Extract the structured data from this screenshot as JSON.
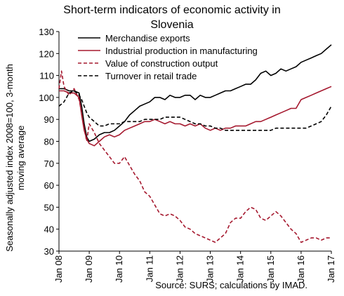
{
  "chart_data": {
    "type": "line",
    "title_lines": [
      "Short-term indicators of economic activity in",
      "Slovenia"
    ],
    "ylabel_lines": [
      "Seasonally adjusted index 2008=100, 3-month",
      "moving average"
    ],
    "source": "Source: SURS; calculations by IMAD.",
    "ylim": [
      30,
      130
    ],
    "yticks": [
      30,
      40,
      50,
      60,
      70,
      80,
      90,
      100,
      110,
      120,
      130
    ],
    "xlim": [
      "2008-01",
      "2017-01"
    ],
    "xticks": [
      {
        "label": "Jan 08",
        "date": "2008-01"
      },
      {
        "label": "Jan 09",
        "date": "2009-01"
      },
      {
        "label": "Jan 10",
        "date": "2010-01"
      },
      {
        "label": "Jan 11",
        "date": "2011-01"
      },
      {
        "label": "Jan 12",
        "date": "2012-01"
      },
      {
        "label": "Jan 13",
        "date": "2013-01"
      },
      {
        "label": "Jan 14",
        "date": "2014-01"
      },
      {
        "label": "Jan 15",
        "date": "2015-01"
      },
      {
        "label": "Jan 16",
        "date": "2016-01"
      },
      {
        "label": "Jan 17",
        "date": "2017-01"
      }
    ],
    "grid": false,
    "legend_position": "top-left",
    "series": [
      {
        "name": "Merchandise exports",
        "color": "#000000",
        "dash": "solid",
        "points": [
          [
            "2008-01",
            104
          ],
          [
            "2008-03",
            104
          ],
          [
            "2008-05",
            103
          ],
          [
            "2008-07",
            103
          ],
          [
            "2008-09",
            102
          ],
          [
            "2008-10",
            96
          ],
          [
            "2008-11",
            88
          ],
          [
            "2008-12",
            82
          ],
          [
            "2009-01",
            80
          ],
          [
            "2009-03",
            81
          ],
          [
            "2009-05",
            83
          ],
          [
            "2009-07",
            84
          ],
          [
            "2009-09",
            84
          ],
          [
            "2009-11",
            85
          ],
          [
            "2010-01",
            87
          ],
          [
            "2010-03",
            89
          ],
          [
            "2010-05",
            92
          ],
          [
            "2010-07",
            94
          ],
          [
            "2010-09",
            96
          ],
          [
            "2010-11",
            97
          ],
          [
            "2011-01",
            98
          ],
          [
            "2011-03",
            100
          ],
          [
            "2011-05",
            100
          ],
          [
            "2011-07",
            99
          ],
          [
            "2011-09",
            101
          ],
          [
            "2011-11",
            100
          ],
          [
            "2012-01",
            100
          ],
          [
            "2012-03",
            101
          ],
          [
            "2012-05",
            101
          ],
          [
            "2012-07",
            99
          ],
          [
            "2012-09",
            101
          ],
          [
            "2012-11",
            100
          ],
          [
            "2013-01",
            100
          ],
          [
            "2013-03",
            101
          ],
          [
            "2013-05",
            102
          ],
          [
            "2013-07",
            103
          ],
          [
            "2013-09",
            103
          ],
          [
            "2013-11",
            104
          ],
          [
            "2014-01",
            105
          ],
          [
            "2014-03",
            106
          ],
          [
            "2014-05",
            106
          ],
          [
            "2014-07",
            108
          ],
          [
            "2014-09",
            111
          ],
          [
            "2014-11",
            112
          ],
          [
            "2015-01",
            110
          ],
          [
            "2015-03",
            111
          ],
          [
            "2015-05",
            113
          ],
          [
            "2015-07",
            112
          ],
          [
            "2015-09",
            113
          ],
          [
            "2015-11",
            114
          ],
          [
            "2016-01",
            116
          ],
          [
            "2016-03",
            117
          ],
          [
            "2016-05",
            118
          ],
          [
            "2016-07",
            119
          ],
          [
            "2016-09",
            120
          ],
          [
            "2016-11",
            122
          ],
          [
            "2017-01",
            124
          ]
        ]
      },
      {
        "name": "Industrial production in manufacturing",
        "color": "#a5182e",
        "dash": "solid",
        "points": [
          [
            "2008-01",
            103
          ],
          [
            "2008-03",
            103
          ],
          [
            "2008-05",
            102
          ],
          [
            "2008-07",
            102
          ],
          [
            "2008-09",
            100
          ],
          [
            "2008-10",
            92
          ],
          [
            "2008-11",
            85
          ],
          [
            "2008-12",
            81
          ],
          [
            "2009-01",
            79
          ],
          [
            "2009-03",
            78
          ],
          [
            "2009-05",
            80
          ],
          [
            "2009-07",
            82
          ],
          [
            "2009-09",
            83
          ],
          [
            "2009-11",
            82
          ],
          [
            "2010-01",
            83
          ],
          [
            "2010-03",
            85
          ],
          [
            "2010-05",
            86
          ],
          [
            "2010-07",
            87
          ],
          [
            "2010-09",
            88
          ],
          [
            "2010-11",
            89
          ],
          [
            "2011-01",
            89
          ],
          [
            "2011-03",
            90
          ],
          [
            "2011-05",
            89
          ],
          [
            "2011-07",
            88
          ],
          [
            "2011-09",
            89
          ],
          [
            "2011-11",
            88
          ],
          [
            "2012-01",
            88
          ],
          [
            "2012-03",
            87
          ],
          [
            "2012-05",
            88
          ],
          [
            "2012-07",
            87
          ],
          [
            "2012-09",
            88
          ],
          [
            "2012-11",
            86
          ],
          [
            "2013-01",
            85
          ],
          [
            "2013-03",
            86
          ],
          [
            "2013-05",
            85
          ],
          [
            "2013-07",
            86
          ],
          [
            "2013-09",
            86
          ],
          [
            "2013-11",
            87
          ],
          [
            "2014-01",
            87
          ],
          [
            "2014-03",
            87
          ],
          [
            "2014-05",
            88
          ],
          [
            "2014-07",
            89
          ],
          [
            "2014-09",
            89
          ],
          [
            "2014-11",
            90
          ],
          [
            "2015-01",
            91
          ],
          [
            "2015-03",
            92
          ],
          [
            "2015-05",
            93
          ],
          [
            "2015-07",
            94
          ],
          [
            "2015-09",
            95
          ],
          [
            "2015-11",
            95
          ],
          [
            "2016-01",
            99
          ],
          [
            "2016-03",
            100
          ],
          [
            "2016-05",
            101
          ],
          [
            "2016-07",
            102
          ],
          [
            "2016-09",
            103
          ],
          [
            "2016-11",
            104
          ],
          [
            "2017-01",
            105
          ]
        ]
      },
      {
        "name": "Value of construction output",
        "color": "#a5182e",
        "dash": "dashed",
        "points": [
          [
            "2008-01",
            104
          ],
          [
            "2008-02",
            112
          ],
          [
            "2008-03",
            105
          ],
          [
            "2008-05",
            101
          ],
          [
            "2008-07",
            104
          ],
          [
            "2008-09",
            99
          ],
          [
            "2008-10",
            93
          ],
          [
            "2008-11",
            86
          ],
          [
            "2008-12",
            80
          ],
          [
            "2009-01",
            88
          ],
          [
            "2009-03",
            84
          ],
          [
            "2009-05",
            79
          ],
          [
            "2009-07",
            76
          ],
          [
            "2009-09",
            73
          ],
          [
            "2009-11",
            70
          ],
          [
            "2010-01",
            70
          ],
          [
            "2010-03",
            73
          ],
          [
            "2010-05",
            69
          ],
          [
            "2010-07",
            65
          ],
          [
            "2010-09",
            62
          ],
          [
            "2010-11",
            57
          ],
          [
            "2011-01",
            55
          ],
          [
            "2011-03",
            51
          ],
          [
            "2011-05",
            47
          ],
          [
            "2011-07",
            46
          ],
          [
            "2011-09",
            47
          ],
          [
            "2011-11",
            46
          ],
          [
            "2012-01",
            44
          ],
          [
            "2012-03",
            41
          ],
          [
            "2012-05",
            40
          ],
          [
            "2012-07",
            38
          ],
          [
            "2012-09",
            37
          ],
          [
            "2012-11",
            36
          ],
          [
            "2013-01",
            35
          ],
          [
            "2013-03",
            34
          ],
          [
            "2013-05",
            36
          ],
          [
            "2013-07",
            38
          ],
          [
            "2013-09",
            43
          ],
          [
            "2013-11",
            45
          ],
          [
            "2014-01",
            45
          ],
          [
            "2014-03",
            48
          ],
          [
            "2014-05",
            50
          ],
          [
            "2014-07",
            49
          ],
          [
            "2014-09",
            45
          ],
          [
            "2014-11",
            44
          ],
          [
            "2015-01",
            46
          ],
          [
            "2015-03",
            48
          ],
          [
            "2015-05",
            46
          ],
          [
            "2015-07",
            43
          ],
          [
            "2015-09",
            40
          ],
          [
            "2015-11",
            38
          ],
          [
            "2016-01",
            34
          ],
          [
            "2016-03",
            35
          ],
          [
            "2016-05",
            36
          ],
          [
            "2016-07",
            36
          ],
          [
            "2016-09",
            35
          ],
          [
            "2016-11",
            36
          ],
          [
            "2017-01",
            36
          ]
        ]
      },
      {
        "name": "Turnover in retail trade",
        "color": "#000000",
        "dash": "dashed",
        "points": [
          [
            "2008-01",
            96
          ],
          [
            "2008-03",
            98
          ],
          [
            "2008-05",
            102
          ],
          [
            "2008-07",
            103
          ],
          [
            "2008-09",
            101
          ],
          [
            "2008-10",
            99
          ],
          [
            "2008-11",
            96
          ],
          [
            "2008-12",
            93
          ],
          [
            "2009-01",
            91
          ],
          [
            "2009-03",
            89
          ],
          [
            "2009-05",
            87
          ],
          [
            "2009-07",
            87
          ],
          [
            "2009-09",
            88
          ],
          [
            "2009-11",
            88
          ],
          [
            "2010-01",
            88
          ],
          [
            "2010-03",
            89
          ],
          [
            "2010-05",
            89
          ],
          [
            "2010-07",
            89
          ],
          [
            "2010-09",
            89
          ],
          [
            "2010-11",
            90
          ],
          [
            "2011-01",
            90
          ],
          [
            "2011-03",
            90
          ],
          [
            "2011-05",
            90
          ],
          [
            "2011-07",
            91
          ],
          [
            "2011-09",
            91
          ],
          [
            "2011-11",
            91
          ],
          [
            "2012-01",
            91
          ],
          [
            "2012-03",
            90
          ],
          [
            "2012-05",
            89
          ],
          [
            "2012-07",
            88
          ],
          [
            "2012-09",
            88
          ],
          [
            "2012-11",
            87
          ],
          [
            "2013-01",
            87
          ],
          [
            "2013-03",
            86
          ],
          [
            "2013-05",
            86
          ],
          [
            "2013-07",
            85
          ],
          [
            "2013-09",
            85
          ],
          [
            "2013-11",
            85
          ],
          [
            "2014-01",
            85
          ],
          [
            "2014-03",
            85
          ],
          [
            "2014-05",
            85
          ],
          [
            "2014-07",
            85
          ],
          [
            "2014-09",
            85
          ],
          [
            "2014-11",
            85
          ],
          [
            "2015-01",
            85
          ],
          [
            "2015-03",
            86
          ],
          [
            "2015-05",
            86
          ],
          [
            "2015-07",
            86
          ],
          [
            "2015-09",
            86
          ],
          [
            "2015-11",
            86
          ],
          [
            "2016-01",
            86
          ],
          [
            "2016-03",
            86
          ],
          [
            "2016-05",
            87
          ],
          [
            "2016-07",
            88
          ],
          [
            "2016-09",
            89
          ],
          [
            "2016-11",
            92
          ],
          [
            "2017-01",
            96
          ]
        ]
      }
    ]
  }
}
